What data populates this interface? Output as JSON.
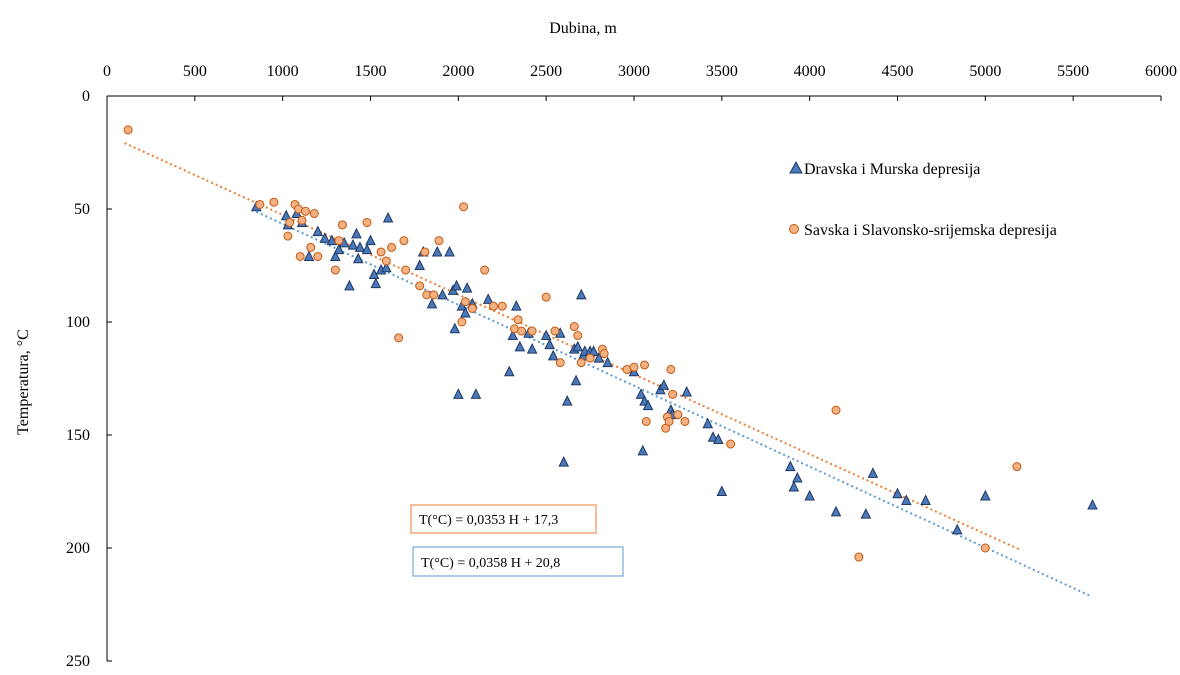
{
  "chart_data": {
    "type": "scatter",
    "title": "",
    "xlabel": "Dubina,  m",
    "ylabel": "Temperatura,  °C",
    "xlim": [
      0,
      6000
    ],
    "ylim": [
      0,
      250
    ],
    "x_ticks": [
      0,
      500,
      1000,
      1500,
      2000,
      2500,
      3000,
      3500,
      4000,
      4500,
      5000,
      5500,
      6000
    ],
    "y_ticks": [
      0,
      50,
      100,
      150,
      200,
      250
    ],
    "x_axis_position": "top",
    "y_axis_inverted": true,
    "grid": false,
    "legend_position": "top-right",
    "series": [
      {
        "name": "Dravska i Murska depresija",
        "marker": "triangle",
        "fill": "#4a78b8",
        "stroke": "#1f3864",
        "points": [
          [
            850,
            49
          ],
          [
            1020,
            53
          ],
          [
            1030,
            57
          ],
          [
            1080,
            52
          ],
          [
            1110,
            56
          ],
          [
            1150,
            71
          ],
          [
            1200,
            60
          ],
          [
            1240,
            63
          ],
          [
            1280,
            64
          ],
          [
            1300,
            71
          ],
          [
            1320,
            68
          ],
          [
            1350,
            65
          ],
          [
            1380,
            84
          ],
          [
            1400,
            66
          ],
          [
            1420,
            61
          ],
          [
            1430,
            72
          ],
          [
            1440,
            67
          ],
          [
            1480,
            68
          ],
          [
            1500,
            64
          ],
          [
            1520,
            79
          ],
          [
            1530,
            83
          ],
          [
            1560,
            77
          ],
          [
            1590,
            76
          ],
          [
            1600,
            54
          ],
          [
            1780,
            75
          ],
          [
            1800,
            69
          ],
          [
            1850,
            92
          ],
          [
            1880,
            69
          ],
          [
            1910,
            88
          ],
          [
            1950,
            69
          ],
          [
            1970,
            86
          ],
          [
            1990,
            84
          ],
          [
            1980,
            103
          ],
          [
            2000,
            132
          ],
          [
            2020,
            93
          ],
          [
            2040,
            96
          ],
          [
            2050,
            85
          ],
          [
            2080,
            92
          ],
          [
            2100,
            132
          ],
          [
            2170,
            90
          ],
          [
            2290,
            122
          ],
          [
            2310,
            106
          ],
          [
            2330,
            93
          ],
          [
            2350,
            111
          ],
          [
            2400,
            105
          ],
          [
            2420,
            112
          ],
          [
            2500,
            106
          ],
          [
            2520,
            110
          ],
          [
            2540,
            115
          ],
          [
            2580,
            105
          ],
          [
            2600,
            162
          ],
          [
            2620,
            135
          ],
          [
            2660,
            112
          ],
          [
            2670,
            126
          ],
          [
            2680,
            111
          ],
          [
            2700,
            88
          ],
          [
            2710,
            115
          ],
          [
            2720,
            113
          ],
          [
            2750,
            113
          ],
          [
            2770,
            113
          ],
          [
            2800,
            116
          ],
          [
            2850,
            118
          ],
          [
            3000,
            122
          ],
          [
            3040,
            132
          ],
          [
            3050,
            157
          ],
          [
            3060,
            135
          ],
          [
            3080,
            137
          ],
          [
            3150,
            130
          ],
          [
            3170,
            128
          ],
          [
            3210,
            139
          ],
          [
            3220,
            141
          ],
          [
            3300,
            131
          ],
          [
            3420,
            145
          ],
          [
            3450,
            151
          ],
          [
            3480,
            152
          ],
          [
            3500,
            175
          ],
          [
            3890,
            164
          ],
          [
            3910,
            173
          ],
          [
            3930,
            169
          ],
          [
            4000,
            177
          ],
          [
            4150,
            184
          ],
          [
            4320,
            185
          ],
          [
            4360,
            167
          ],
          [
            4500,
            176
          ],
          [
            4550,
            179
          ],
          [
            4660,
            179
          ],
          [
            4840,
            192
          ],
          [
            5000,
            177
          ],
          [
            5610,
            181
          ]
        ]
      },
      {
        "name": "Savska i Slavonsko-srijemska depresija",
        "marker": "circle",
        "fill": "#f4b183",
        "stroke": "#c55a11",
        "points": [
          [
            120,
            15
          ],
          [
            870,
            48
          ],
          [
            950,
            47
          ],
          [
            1030,
            62
          ],
          [
            1040,
            56
          ],
          [
            1070,
            48
          ],
          [
            1090,
            50
          ],
          [
            1100,
            71
          ],
          [
            1110,
            55
          ],
          [
            1130,
            51
          ],
          [
            1160,
            67
          ],
          [
            1180,
            52
          ],
          [
            1200,
            71
          ],
          [
            1300,
            77
          ],
          [
            1320,
            64
          ],
          [
            1340,
            57
          ],
          [
            1480,
            56
          ],
          [
            1560,
            69
          ],
          [
            1590,
            73
          ],
          [
            1620,
            67
          ],
          [
            1660,
            107
          ],
          [
            1690,
            64
          ],
          [
            1700,
            77
          ],
          [
            1780,
            84
          ],
          [
            1810,
            69
          ],
          [
            1820,
            88
          ],
          [
            1860,
            88
          ],
          [
            1890,
            64
          ],
          [
            2020,
            100
          ],
          [
            2030,
            49
          ],
          [
            2040,
            91
          ],
          [
            2080,
            94
          ],
          [
            2150,
            77
          ],
          [
            2200,
            93
          ],
          [
            2250,
            93
          ],
          [
            2320,
            103
          ],
          [
            2340,
            99
          ],
          [
            2360,
            104
          ],
          [
            2420,
            104
          ],
          [
            2500,
            89
          ],
          [
            2550,
            104
          ],
          [
            2580,
            118
          ],
          [
            2660,
            102
          ],
          [
            2680,
            106
          ],
          [
            2700,
            118
          ],
          [
            2750,
            116
          ],
          [
            2820,
            112
          ],
          [
            2830,
            114
          ],
          [
            2960,
            121
          ],
          [
            3000,
            120
          ],
          [
            3060,
            119
          ],
          [
            3070,
            144
          ],
          [
            3180,
            147
          ],
          [
            3190,
            142
          ],
          [
            3200,
            144
          ],
          [
            3210,
            121
          ],
          [
            3220,
            132
          ],
          [
            3250,
            141
          ],
          [
            3290,
            144
          ],
          [
            3550,
            154
          ],
          [
            4150,
            139
          ],
          [
            4280,
            204
          ],
          [
            5000,
            200
          ],
          [
            5180,
            164
          ]
        ]
      }
    ],
    "trendlines": [
      {
        "series": "Savska i Slavonsko-srijemska depresija",
        "color": "#ed7d31",
        "slope": 0.0353,
        "intercept": 17.3,
        "x_range": [
          100,
          5200
        ],
        "equation": "T(°C)  = 0,0353  H + 17,3"
      },
      {
        "series": "Dravska i Murska depresija",
        "color": "#5b9bd5",
        "slope": 0.0358,
        "intercept": 20.8,
        "x_range": [
          850,
          5600
        ],
        "equation": "T(°C)  =  0,0358  H + 20,8"
      }
    ]
  }
}
